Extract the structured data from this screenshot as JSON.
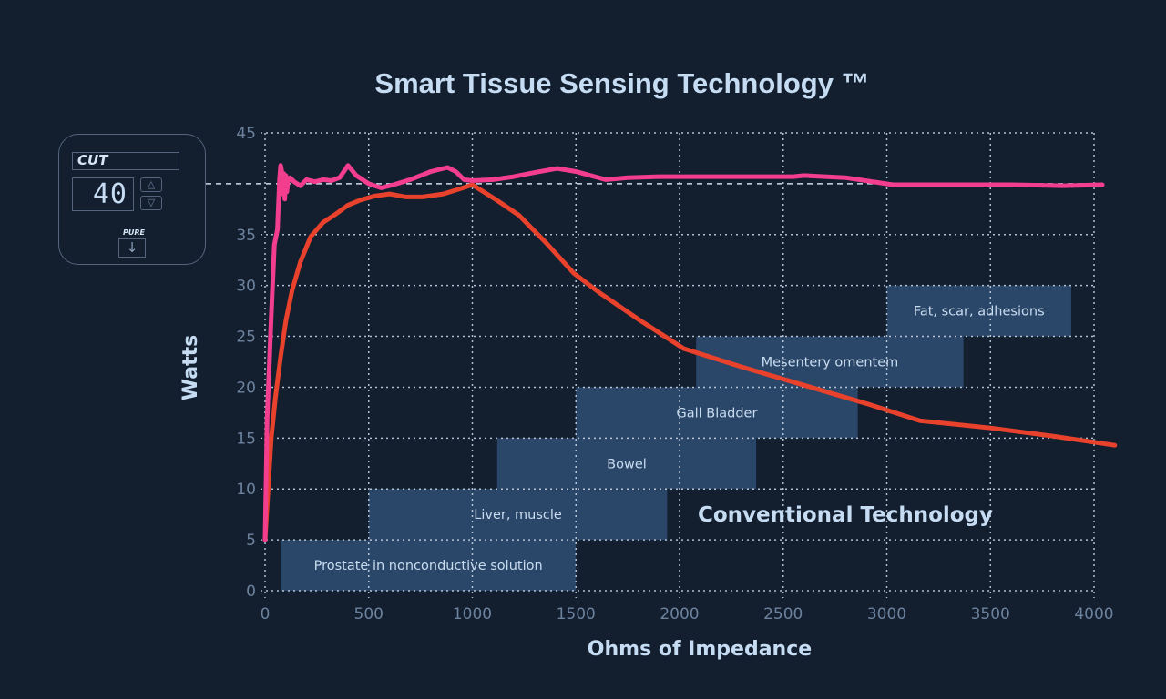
{
  "chart_data": {
    "type": "line",
    "title": "Smart Tissue Sensing Technology ™",
    "xlabel": "Ohms of Impedance",
    "ylabel": "Watts",
    "xlim": [
      0,
      4000
    ],
    "ylim": [
      0,
      45
    ],
    "grid": true,
    "x_ticks": [
      0,
      500,
      1000,
      1500,
      2000,
      2500,
      3000,
      3500,
      4000
    ],
    "y_ticks": [
      0,
      5,
      10,
      15,
      20,
      25,
      30,
      35,
      45
    ],
    "reference_line": {
      "y": 40,
      "style": "dashed"
    },
    "series": [
      {
        "name": "Smart Tissue Sensing Technology",
        "color": "#f23e8c",
        "x": [
          0,
          10,
          30,
          45,
          60,
          70,
          75,
          80,
          85,
          90,
          95,
          100,
          105,
          110,
          120,
          140,
          170,
          200,
          240,
          280,
          320,
          360,
          400,
          440,
          500,
          560,
          620,
          700,
          800,
          880,
          920,
          960,
          1000,
          1100,
          1200,
          1300,
          1410,
          1500,
          1645,
          1750,
          1900,
          2100,
          2300,
          2550,
          2600,
          2800,
          3030,
          3300,
          3600,
          3850,
          4040
        ],
        "y": [
          5,
          17,
          27,
          34,
          35.5,
          40.5,
          41.8,
          41.3,
          39,
          41,
          38.5,
          40.8,
          39.2,
          40.2,
          40.6,
          40.2,
          39.8,
          40.4,
          40.2,
          40.4,
          40.3,
          40.6,
          41.8,
          40.8,
          40,
          39.6,
          39.9,
          40.4,
          41.2,
          41.6,
          41.2,
          40.4,
          40.3,
          40.4,
          40.7,
          41.1,
          41.5,
          41.2,
          40.4,
          40.6,
          40.7,
          40.7,
          40.7,
          40.7,
          40.8,
          40.6,
          39.9,
          39.9,
          39.9,
          39.8,
          39.9
        ]
      },
      {
        "name": "Conventional Technology",
        "color": "#e8412c",
        "x": [
          0,
          15,
          30,
          50,
          75,
          100,
          130,
          170,
          220,
          280,
          340,
          400,
          460,
          530,
          600,
          680,
          760,
          860,
          940,
          1000,
          1110,
          1225,
          1360,
          1490,
          1620,
          1800,
          2020,
          2300,
          2600,
          2900,
          3160,
          3500,
          3800,
          4100
        ],
        "y": [
          5,
          10,
          15,
          19,
          23,
          26.5,
          29.5,
          32.3,
          34.8,
          36.2,
          37,
          37.9,
          38.4,
          38.8,
          39.0,
          38.7,
          38.7,
          39.0,
          39.5,
          39.9,
          38.5,
          36.9,
          34.1,
          31.2,
          29.2,
          26.7,
          23.8,
          22.0,
          20.2,
          18.4,
          16.7,
          16.0,
          15.2,
          14.3
        ]
      }
    ],
    "bands": [
      {
        "label": "Prostate in nonconductive solution",
        "x": [
          75,
          1500
        ],
        "y": [
          0,
          5
        ]
      },
      {
        "label": "Liver, muscle",
        "x": [
          500,
          1940
        ],
        "y": [
          5,
          10
        ]
      },
      {
        "label": "Bowel",
        "x": [
          1120,
          2370
        ],
        "y": [
          10,
          15
        ]
      },
      {
        "label": "Gall Bladder",
        "x": [
          1500,
          2860
        ],
        "y": [
          15,
          20
        ]
      },
      {
        "label": "Mesentery omentem",
        "x": [
          2080,
          3370
        ],
        "y": [
          20,
          25
        ]
      },
      {
        "label": "Fat, scar, adhesions",
        "x": [
          3000,
          3890
        ],
        "y": [
          25,
          30
        ]
      }
    ],
    "band_color": "#2a4669",
    "annotations": [
      {
        "text": "Conventional Technology",
        "x": 2800,
        "y": 7.5
      }
    ]
  },
  "control_panel": {
    "mode": "CUT",
    "power_readout": "40",
    "up_icon": "△",
    "down_icon": "▽",
    "pure_label": "PURE",
    "pure_icon": "↓"
  }
}
